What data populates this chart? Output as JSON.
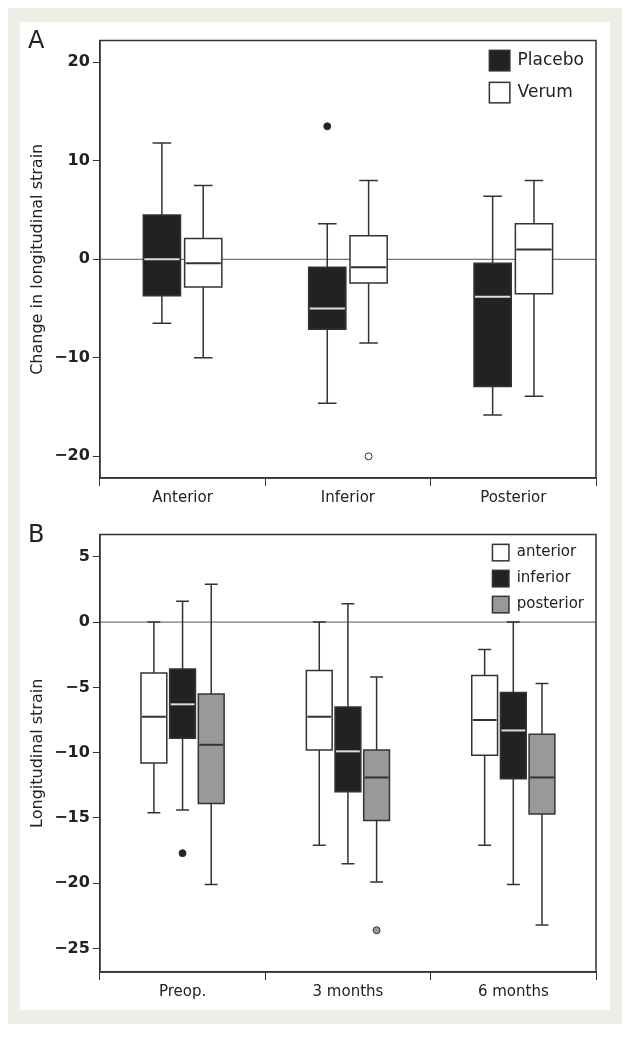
{
  "chart_data": [
    {
      "type": "box",
      "annotations": [
        "A"
      ],
      "ylabel": "Change in longitudinal strain",
      "categories": [
        "Anterior",
        "Inferior",
        "Posterior"
      ],
      "ylim": [
        -22.2,
        22.2
      ],
      "yticks": [
        -20,
        -10,
        0,
        10,
        20
      ],
      "legend": "top right",
      "ref_lines": [
        {
          "axis": "y",
          "value": 0,
          "color": "#555555"
        }
      ],
      "series": [
        {
          "name": "Placebo",
          "color": "#222222",
          "boxes": [
            {
              "low": -6.5,
              "q1": -3.7,
              "median": 0,
              "q3": 4.5,
              "high": 11.8
            },
            {
              "low": -14.6,
              "q1": -7.1,
              "median": -5.0,
              "q3": -0.8,
              "high": 3.6,
              "outliers": [
                13.5
              ]
            },
            {
              "low": -15.8,
              "q1": -12.9,
              "median": -3.8,
              "q3": -0.4,
              "high": 6.4
            }
          ]
        },
        {
          "name": "Verum",
          "color": "#ffffff",
          "boxes": [
            {
              "low": -10,
              "q1": -2.8,
              "median": -0.4,
              "q3": 2.1,
              "high": 7.5
            },
            {
              "low": -8.5,
              "q1": -2.4,
              "median": -0.8,
              "q3": 2.4,
              "high": 8.0,
              "outliers": [
                -20
              ]
            },
            {
              "low": -13.9,
              "q1": -3.5,
              "median": 1.0,
              "q3": 3.6,
              "high": 8.0
            }
          ]
        }
      ]
    },
    {
      "type": "box",
      "annotations": [
        "B"
      ],
      "ylabel": "Longitudinal strain",
      "categories": [
        "Preop.",
        "3 months",
        "6 months"
      ],
      "ylim": [
        -26.8,
        6.7
      ],
      "yticks": [
        -25,
        -20,
        -15,
        -10,
        -5,
        0,
        5
      ],
      "legend": "top right",
      "ref_lines": [
        {
          "axis": "y",
          "value": 0,
          "color": "#555555"
        }
      ],
      "series": [
        {
          "name": "anterior",
          "color": "#ffffff",
          "boxes": [
            {
              "low": -14.6,
              "q1": -10.8,
              "median": -7.25,
              "q3": -3.9,
              "high": 0
            },
            {
              "low": -17.1,
              "q1": -9.8,
              "median": -7.25,
              "q3": -3.7,
              "high": 0
            },
            {
              "low": -17.1,
              "q1": -10.2,
              "median": -7.5,
              "q3": -4.1,
              "high": -2.1
            }
          ]
        },
        {
          "name": "inferior",
          "color": "#222222",
          "boxes": [
            {
              "low": -14.4,
              "q1": -8.9,
              "median": -6.3,
              "q3": -3.6,
              "high": 1.6,
              "outliers": [
                -17.7
              ]
            },
            {
              "low": -18.5,
              "q1": -13.0,
              "median": -9.9,
              "q3": -6.5,
              "high": 1.4
            },
            {
              "low": -20.1,
              "q1": -12.0,
              "median": -8.3,
              "q3": -5.4,
              "high": 0
            }
          ]
        },
        {
          "name": "posterior",
          "color": "#999999",
          "boxes": [
            {
              "low": -20.1,
              "q1": -13.9,
              "median": -9.4,
              "q3": -5.5,
              "high": 2.9
            },
            {
              "low": -19.9,
              "q1": -15.2,
              "median": -11.9,
              "q3": -9.8,
              "high": -4.2,
              "outliers": [
                -23.6
              ]
            },
            {
              "low": -23.2,
              "q1": -14.7,
              "median": -11.9,
              "q3": -8.6,
              "high": -4.7
            }
          ]
        }
      ]
    }
  ]
}
